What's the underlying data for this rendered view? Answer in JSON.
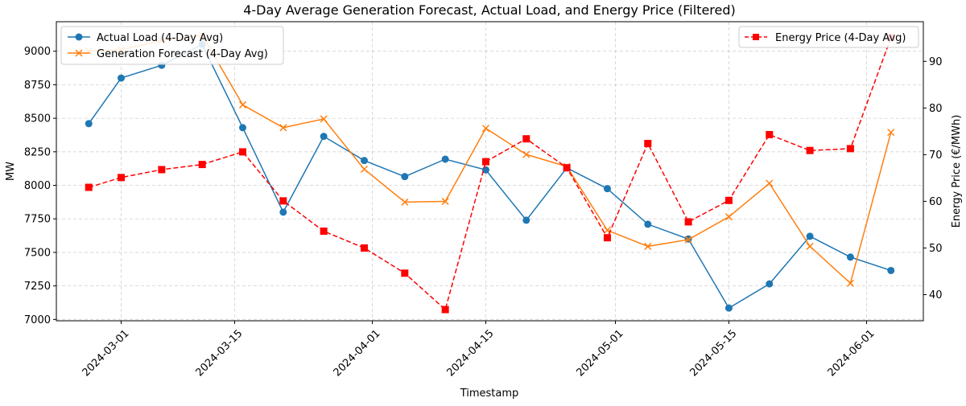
{
  "chart_data": {
    "type": "line",
    "title": "4-Day Average Generation Forecast, Actual Load, and Energy Price (Filtered)",
    "xlabel": "Timestamp",
    "ylabel": "MW",
    "ylabel_right": "Energy Price (€/MWh)",
    "x_ticks": [
      "2024-03-01",
      "2024-03-15",
      "2024-04-01",
      "2024-04-15",
      "2024-05-01",
      "2024-05-15",
      "2024-06-01"
    ],
    "x_range": [
      "2024-02-22",
      "2024-06-08"
    ],
    "ylim": [
      6990,
      9220
    ],
    "y_ticks": [
      7000,
      7250,
      7500,
      7750,
      8000,
      8250,
      8500,
      8750,
      9000
    ],
    "ylim_right": [
      34.4,
      98.5
    ],
    "y_ticks_right": [
      40,
      50,
      60,
      70,
      80,
      90
    ],
    "grid": true,
    "legend_left": "upper-left",
    "legend_right": "upper-right",
    "x": [
      "2024-02-26",
      "2024-03-01",
      "2024-03-06",
      "2024-03-11",
      "2024-03-16",
      "2024-03-21",
      "2024-03-26",
      "2024-03-31",
      "2024-04-05",
      "2024-04-10",
      "2024-04-15",
      "2024-04-20",
      "2024-04-25",
      "2024-04-30",
      "2024-05-05",
      "2024-05-10",
      "2024-05-15",
      "2024-05-20",
      "2024-05-25",
      "2024-05-30",
      "2024-06-04"
    ],
    "series": [
      {
        "name": "Actual Load (4-Day Avg)",
        "axis": "left",
        "color": "#1f77b4",
        "marker": "circle",
        "linestyle": "solid",
        "values": [
          8460,
          8800,
          8895,
          9050,
          8430,
          7800,
          8365,
          8185,
          8065,
          8195,
          8115,
          7740,
          8130,
          7975,
          7710,
          7600,
          7085,
          7265,
          7620,
          7465,
          7365
        ]
      },
      {
        "name": "Generation Forecast (4-Day Avg)",
        "axis": "left",
        "color": "#ff7f0e",
        "marker": "x",
        "linestyle": "solid",
        "values": [
          9000,
          9010,
          9080,
          9120,
          8600,
          8430,
          8495,
          8120,
          7875,
          7880,
          8425,
          8230,
          8140,
          7665,
          7545,
          7595,
          7765,
          8015,
          7545,
          7270,
          8395
        ]
      },
      {
        "name": "Energy Price (4-Day Avg)",
        "axis": "right",
        "color": "#ff0000",
        "marker": "square",
        "linestyle": "dashed",
        "values": [
          63.0,
          65.1,
          66.8,
          67.9,
          70.6,
          60.1,
          53.6,
          50.0,
          44.6,
          36.8,
          68.5,
          73.4,
          67.2,
          52.2,
          72.4,
          55.6,
          60.2,
          74.3,
          70.9,
          71.3,
          95.1
        ]
      }
    ]
  }
}
